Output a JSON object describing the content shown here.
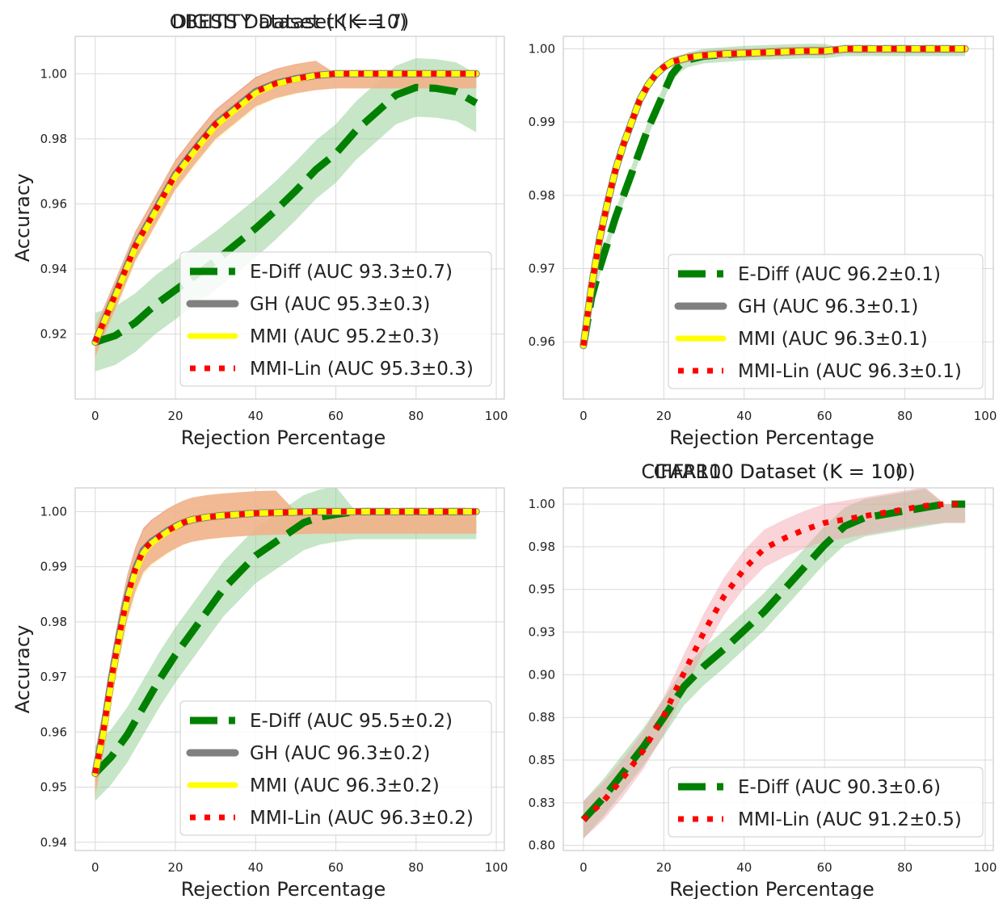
{
  "colors": {
    "ediff": "#008000",
    "gh": "#808080",
    "mmi": "#ffff00",
    "mmilin": "#ff0000",
    "ediff_band": "#8fcc8f",
    "gh_band": "#d48a4a",
    "mmi_band": "#ffeb80",
    "mmilin_band": "#f2a0a8",
    "grid": "#d9d9d9",
    "frame": "#cccccc"
  },
  "chart_data": [
    {
      "type": "line",
      "title": "OBESITY Dataset (K = 7)",
      "xlabel": "Rejection Percentage",
      "ylabel": "Accuracy",
      "xlim": [
        -5,
        102
      ],
      "ylim": [
        0.9,
        1.0115
      ],
      "xticks": [
        0,
        20,
        40,
        60,
        80,
        100
      ],
      "yticks": [
        0.92,
        0.94,
        0.96,
        0.98,
        1.0
      ],
      "ytick_labels": [
        "0.92",
        "0.94",
        "0.96",
        "0.98",
        "1.00"
      ],
      "grid": true,
      "legend_position": "lower-right",
      "series": [
        {
          "name": "E-Diff (AUC 93.3±0.7)",
          "style": "ediff",
          "band": 0.009,
          "x": [
            0,
            5,
            10,
            15,
            20,
            25,
            30,
            35,
            40,
            45,
            50,
            55,
            60,
            65,
            70,
            75,
            80,
            85,
            90,
            95
          ],
          "y": [
            0.9175,
            0.9195,
            0.9235,
            0.929,
            0.9335,
            0.938,
            0.9425,
            0.9475,
            0.9525,
            0.958,
            0.964,
            0.9705,
            0.9755,
            0.9825,
            0.988,
            0.9935,
            0.9958,
            0.9955,
            0.9945,
            0.991
          ]
        },
        {
          "name": "GH (AUC 95.3±0.3)",
          "style": "gh",
          "band": 0.0045,
          "x": [
            0,
            5,
            10,
            15,
            20,
            25,
            30,
            35,
            40,
            45,
            50,
            55,
            60,
            65,
            70,
            75,
            80,
            85,
            90,
            95
          ],
          "y": [
            0.9175,
            0.932,
            0.947,
            0.958,
            0.969,
            0.977,
            0.9845,
            0.9895,
            0.9945,
            0.997,
            0.9985,
            0.9995,
            1.0,
            1.0,
            1.0,
            1.0,
            1.0,
            1.0,
            1.0,
            1.0
          ]
        },
        {
          "name": "MMI (AUC 95.2±0.3)",
          "style": "mmi",
          "band": 0.0045,
          "x": [
            0,
            5,
            10,
            15,
            20,
            25,
            30,
            35,
            40,
            45,
            50,
            55,
            60,
            65,
            70,
            75,
            80,
            85,
            90,
            95
          ],
          "y": [
            0.9175,
            0.9315,
            0.9465,
            0.9575,
            0.9685,
            0.9765,
            0.984,
            0.989,
            0.994,
            0.9968,
            0.9983,
            0.9995,
            1.0,
            1.0,
            1.0,
            1.0,
            1.0,
            1.0,
            1.0,
            1.0
          ]
        },
        {
          "name": "MMI-Lin (AUC 95.3±0.3)",
          "style": "mmilin",
          "band": 0.0045,
          "x": [
            0,
            5,
            10,
            15,
            20,
            25,
            30,
            35,
            40,
            45,
            50,
            55,
            60,
            65,
            70,
            75,
            80,
            85,
            90,
            95
          ],
          "y": [
            0.9175,
            0.932,
            0.947,
            0.958,
            0.969,
            0.977,
            0.9845,
            0.9895,
            0.9945,
            0.997,
            0.9985,
            0.9995,
            1.0,
            1.0,
            1.0,
            1.0,
            1.0,
            1.0,
            1.0,
            1.0
          ]
        }
      ]
    },
    {
      "type": "line",
      "title": "CIFAR10 Dataset (K = 10)",
      "xlabel": "Rejection Percentage",
      "ylabel": "",
      "xlim": [
        -5,
        102
      ],
      "ylim": [
        0.9522,
        1.0017
      ],
      "xticks": [
        0,
        20,
        40,
        60,
        80,
        100
      ],
      "yticks": [
        0.96,
        0.97,
        0.98,
        0.99,
        1.0
      ],
      "ytick_labels": [
        "0.96",
        "0.97",
        "0.98",
        "0.99",
        "1.00"
      ],
      "grid": true,
      "legend_position": "lower-right",
      "series": [
        {
          "name": "E-Diff (AUC 96.2±0.1)",
          "style": "ediff",
          "band": 0.001,
          "x": [
            0,
            2,
            4,
            6,
            8,
            10,
            12,
            14,
            16,
            18,
            20,
            22,
            24,
            26,
            30,
            35,
            40,
            45,
            50,
            55,
            60,
            65,
            70,
            75,
            80,
            85,
            90,
            95
          ],
          "y": [
            0.9595,
            0.966,
            0.97,
            0.9735,
            0.977,
            0.98,
            0.983,
            0.986,
            0.989,
            0.9915,
            0.994,
            0.9965,
            0.9978,
            0.9985,
            0.999,
            0.9992,
            0.9994,
            0.9995,
            0.9996,
            0.9997,
            0.9997,
            1.0,
            1.0,
            1.0,
            1.0,
            1.0,
            1.0,
            1.0
          ]
        },
        {
          "name": "GH (AUC 96.3±0.1)",
          "style": "gh",
          "band": 0.0006,
          "x": [
            0,
            2,
            4,
            6,
            8,
            10,
            12,
            14,
            16,
            18,
            20,
            22,
            24,
            26,
            30,
            35,
            40,
            45,
            50,
            55,
            60,
            65,
            70,
            75,
            80,
            85,
            90,
            95
          ],
          "y": [
            0.9595,
            0.9675,
            0.974,
            0.979,
            0.9835,
            0.987,
            0.99,
            0.993,
            0.995,
            0.9965,
            0.9975,
            0.9982,
            0.9985,
            0.9988,
            0.9991,
            0.9993,
            0.9994,
            0.9995,
            0.9996,
            0.9997,
            0.9997,
            1.0,
            1.0,
            1.0,
            1.0,
            1.0,
            1.0,
            1.0
          ]
        },
        {
          "name": "MMI (AUC 96.3±0.1)",
          "style": "mmi",
          "band": 0.0006,
          "x": [
            0,
            2,
            4,
            6,
            8,
            10,
            12,
            14,
            16,
            18,
            20,
            22,
            24,
            26,
            30,
            35,
            40,
            45,
            50,
            55,
            60,
            65,
            70,
            75,
            80,
            85,
            90,
            95
          ],
          "y": [
            0.9595,
            0.9675,
            0.974,
            0.979,
            0.9835,
            0.987,
            0.99,
            0.993,
            0.995,
            0.9965,
            0.9975,
            0.9982,
            0.9985,
            0.9988,
            0.9991,
            0.9993,
            0.9994,
            0.9995,
            0.9996,
            0.9997,
            0.9997,
            1.0,
            1.0,
            1.0,
            1.0,
            1.0,
            1.0,
            1.0
          ]
        },
        {
          "name": "MMI-Lin (AUC 96.3±0.1)",
          "style": "mmilin",
          "band": 0.0006,
          "x": [
            0,
            2,
            4,
            6,
            8,
            10,
            12,
            14,
            16,
            18,
            20,
            22,
            24,
            26,
            30,
            35,
            40,
            45,
            50,
            55,
            60,
            65,
            70,
            75,
            80,
            85,
            90,
            95
          ],
          "y": [
            0.9595,
            0.9675,
            0.974,
            0.979,
            0.9835,
            0.987,
            0.99,
            0.993,
            0.995,
            0.9965,
            0.9975,
            0.9982,
            0.9985,
            0.9988,
            0.9991,
            0.9993,
            0.9994,
            0.9995,
            0.9996,
            0.9997,
            0.9997,
            1.0,
            1.0,
            1.0,
            1.0,
            1.0,
            1.0,
            1.0
          ]
        }
      ]
    },
    {
      "type": "line",
      "title": "DIGITS Dataset (K = 10)",
      "xlabel": "Rejection Percentage",
      "ylabel": "Accuracy",
      "xlim": [
        -5,
        102
      ],
      "ylim": [
        0.9385,
        1.0043
      ],
      "xticks": [
        0,
        20,
        40,
        60,
        80,
        100
      ],
      "yticks": [
        0.94,
        0.95,
        0.96,
        0.97,
        0.98,
        0.99,
        1.0
      ],
      "ytick_labels": [
        "0.94",
        "0.95",
        "0.96",
        "0.97",
        "0.98",
        "0.99",
        "1.00"
      ],
      "grid": true,
      "legend_position": "lower-right",
      "series": [
        {
          "name": "E-Diff (AUC 95.5±0.2)",
          "style": "ediff",
          "band": 0.005,
          "x": [
            0,
            4,
            8,
            12,
            16,
            20,
            24,
            28,
            32,
            36,
            40,
            44,
            48,
            52,
            56,
            60,
            65,
            70,
            75,
            80,
            85,
            90,
            95
          ],
          "y": [
            0.9525,
            0.9555,
            0.9595,
            0.9645,
            0.9695,
            0.974,
            0.978,
            0.982,
            0.986,
            0.989,
            0.992,
            0.994,
            0.996,
            0.998,
            0.999,
            0.9995,
            1.0,
            1.0,
            1.0,
            1.0,
            1.0,
            1.0,
            1.0
          ]
        },
        {
          "name": "GH (AUC 96.3±0.2)",
          "style": "gh",
          "band": 0.004,
          "x": [
            0,
            2,
            4,
            6,
            8,
            10,
            12,
            14,
            16,
            18,
            20,
            22,
            24,
            28,
            32,
            36,
            40,
            45,
            50,
            55,
            60,
            65,
            70,
            75,
            80,
            85,
            90,
            95
          ],
          "y": [
            0.9525,
            0.96,
            0.9695,
            0.9775,
            0.9845,
            0.9895,
            0.993,
            0.9945,
            0.9955,
            0.9965,
            0.9973,
            0.998,
            0.9985,
            0.999,
            0.9993,
            0.9995,
            0.9997,
            0.9998,
            0.9999,
            1.0,
            1.0,
            1.0,
            1.0,
            1.0,
            1.0,
            1.0,
            1.0,
            1.0
          ]
        },
        {
          "name": "MMI (AUC 96.3±0.2)",
          "style": "mmi",
          "band": 0.004,
          "x": [
            0,
            2,
            4,
            6,
            8,
            10,
            12,
            14,
            16,
            18,
            20,
            22,
            24,
            28,
            32,
            36,
            40,
            45,
            50,
            55,
            60,
            65,
            70,
            75,
            80,
            85,
            90,
            95
          ],
          "y": [
            0.9525,
            0.9595,
            0.969,
            0.977,
            0.984,
            0.989,
            0.9925,
            0.9942,
            0.9953,
            0.9963,
            0.9972,
            0.998,
            0.9985,
            0.999,
            0.9993,
            0.9995,
            0.9997,
            0.9998,
            0.9999,
            1.0,
            1.0,
            1.0,
            1.0,
            1.0,
            1.0,
            1.0,
            1.0,
            1.0
          ]
        },
        {
          "name": "MMI-Lin (AUC 96.3±0.2)",
          "style": "mmilin",
          "band": 0.004,
          "x": [
            0,
            2,
            4,
            6,
            8,
            10,
            12,
            14,
            16,
            18,
            20,
            22,
            24,
            28,
            32,
            36,
            40,
            45,
            50,
            55,
            60,
            65,
            70,
            75,
            80,
            85,
            90,
            95
          ],
          "y": [
            0.9525,
            0.96,
            0.9695,
            0.9775,
            0.9845,
            0.9895,
            0.993,
            0.9945,
            0.9955,
            0.9965,
            0.9973,
            0.998,
            0.9985,
            0.999,
            0.9993,
            0.9995,
            0.9997,
            0.9998,
            0.9999,
            1.0,
            1.0,
            1.0,
            1.0,
            1.0,
            1.0,
            1.0,
            1.0,
            1.0
          ]
        }
      ]
    },
    {
      "type": "line",
      "title": "CIFAR100 Dataset (K = 100)",
      "xlabel": "Rejection Percentage",
      "ylabel": "",
      "xlim": [
        -5,
        102
      ],
      "ylim": [
        0.797,
        1.0095
      ],
      "xticks": [
        0,
        20,
        40,
        60,
        80,
        100
      ],
      "yticks": [
        0.8,
        0.825,
        0.85,
        0.875,
        0.9,
        0.925,
        0.95,
        0.975,
        1.0
      ],
      "ytick_labels": [
        "0.80",
        "0.83",
        "0.85",
        "0.88",
        "0.90",
        "0.93",
        "0.95",
        "0.98",
        "1.00"
      ],
      "grid": true,
      "legend_position": "lower-right",
      "series": [
        {
          "name": "E-Diff (AUC 90.3±0.6)",
          "style": "ediff",
          "band": 0.011,
          "x": [
            0,
            5,
            10,
            15,
            20,
            25,
            30,
            35,
            40,
            45,
            50,
            55,
            60,
            65,
            70,
            75,
            80,
            85,
            90,
            95
          ],
          "y": [
            0.815,
            0.828,
            0.843,
            0.858,
            0.875,
            0.893,
            0.905,
            0.915,
            0.926,
            0.937,
            0.95,
            0.963,
            0.976,
            0.987,
            0.992,
            0.994,
            0.996,
            0.998,
            1.0,
            1.0
          ]
        },
        {
          "name": "MMI-Lin (AUC 91.2±0.5)",
          "style": "mmilin",
          "band": 0.011,
          "x": [
            0,
            5,
            10,
            15,
            20,
            25,
            30,
            35,
            40,
            45,
            50,
            55,
            60,
            65,
            70,
            75,
            80,
            85,
            90,
            95
          ],
          "y": [
            0.815,
            0.826,
            0.84,
            0.856,
            0.876,
            0.901,
            0.925,
            0.946,
            0.962,
            0.974,
            0.98,
            0.985,
            0.989,
            0.991,
            0.993,
            0.995,
            0.997,
            0.999,
            1.0,
            1.0
          ]
        }
      ]
    }
  ]
}
